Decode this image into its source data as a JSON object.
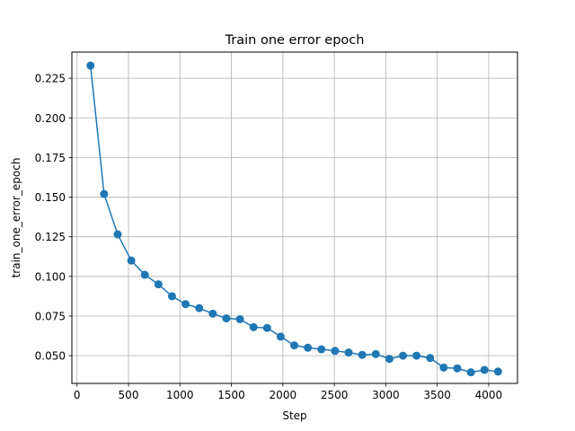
{
  "chart_data": {
    "type": "line",
    "title": "Train one error epoch",
    "xlabel": "Step",
    "ylabel": "train_one_error_epoch",
    "xlim": [
      -50,
      4280
    ],
    "ylim": [
      0.0325,
      0.2415
    ],
    "xticks": [
      0,
      500,
      1000,
      1500,
      2000,
      2500,
      3000,
      3500,
      4000
    ],
    "yticks": [
      0.05,
      0.075,
      0.1,
      0.125,
      0.15,
      0.175,
      0.2,
      0.225
    ],
    "grid": true,
    "series": [
      {
        "color": "#1f77b4",
        "marker": "circle",
        "x": [
          131,
          263,
          395,
          527,
          659,
          791,
          923,
          1055,
          1187,
          1319,
          1451,
          1583,
          1715,
          1847,
          1979,
          2111,
          2243,
          2375,
          2507,
          2639,
          2771,
          2903,
          3035,
          3167,
          3299,
          3431,
          3563,
          3695,
          3827,
          3959,
          4091
        ],
        "y": [
          0.233,
          0.152,
          0.1265,
          0.11,
          0.101,
          0.095,
          0.0875,
          0.0825,
          0.08,
          0.0765,
          0.0735,
          0.073,
          0.068,
          0.0675,
          0.062,
          0.0565,
          0.055,
          0.054,
          0.053,
          0.052,
          0.0505,
          0.051,
          0.048,
          0.05,
          0.05,
          0.0485,
          0.0425,
          0.042,
          0.0395,
          0.041,
          0.04
        ]
      }
    ]
  }
}
